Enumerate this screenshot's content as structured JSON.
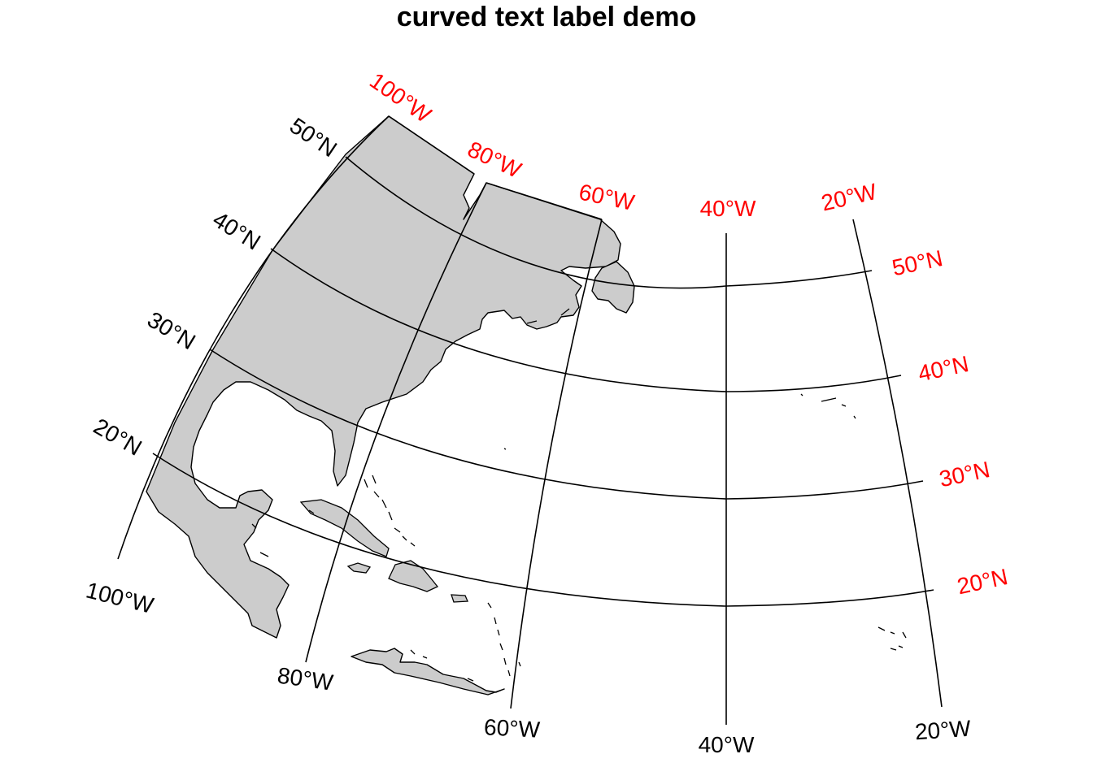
{
  "title": "curved text label demo",
  "projection": "conic",
  "colors": {
    "land": "#cccccc",
    "outline": "#000000",
    "bottom_left_labels": "#000000",
    "top_right_labels": "#ff0000"
  },
  "meridian_labels_bottom": [
    "100°W",
    "80°W",
    "60°W",
    "40°W",
    "20°W"
  ],
  "parallel_labels_left": [
    "50°N",
    "40°N",
    "30°N",
    "20°N"
  ],
  "meridian_labels_top": [
    "100°W",
    "80°W",
    "60°W",
    "40°W",
    "20°W"
  ],
  "parallel_labels_right": [
    "50°N",
    "40°N",
    "30°N",
    "20°N"
  ]
}
